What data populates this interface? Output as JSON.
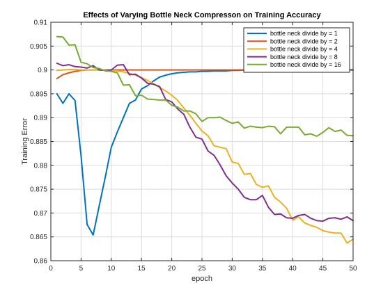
{
  "chart_data": {
    "type": "line",
    "title": "Effects of Varying Bottle Neck Compresson on Training Accuracy",
    "xlabel": "epoch",
    "ylabel": "Training Error",
    "xlim": [
      0,
      50
    ],
    "ylim": [
      0.86,
      0.91
    ],
    "xticks": [
      0,
      5,
      10,
      15,
      20,
      25,
      30,
      35,
      40,
      45,
      50
    ],
    "yticks": [
      0.86,
      0.865,
      0.87,
      0.875,
      0.88,
      0.885,
      0.89,
      0.895,
      0.9,
      0.905,
      0.91
    ],
    "ytick_labels": [
      "0.86",
      "0.865",
      "0.87",
      "0.875",
      "0.88",
      "0.885",
      "0.89",
      "0.895",
      "0.9",
      "0.905",
      "0.91"
    ],
    "grid": true,
    "legend_position": "top-right",
    "x": [
      1,
      2,
      3,
      4,
      5,
      6,
      7,
      8,
      9,
      10,
      11,
      12,
      13,
      14,
      15,
      16,
      17,
      18,
      19,
      20,
      21,
      22,
      23,
      24,
      25,
      26,
      27,
      28,
      29,
      30,
      31,
      32,
      33,
      34,
      35,
      36,
      37,
      38,
      39,
      40,
      41,
      42,
      43,
      44,
      45,
      46,
      47,
      48,
      49,
      50
    ],
    "series": [
      {
        "name": "bottle neck divide by = 1",
        "color": "#0072bd",
        "values": [
          0.895,
          0.893,
          0.895,
          0.8936,
          0.882,
          0.8676,
          0.8654,
          0.8715,
          0.8775,
          0.8838,
          0.887,
          0.89,
          0.893,
          0.8937,
          0.896,
          0.8967,
          0.8977,
          0.8985,
          0.8989,
          0.8992,
          0.8994,
          0.8995,
          0.8996,
          0.8996,
          0.8997,
          0.8997,
          0.8998,
          0.8998,
          0.8998,
          0.8999,
          0.8999,
          0.9,
          0.9,
          0.9,
          0.9,
          0.9,
          0.9,
          0.9,
          0.9,
          0.9,
          0.9,
          0.9,
          0.9,
          0.9,
          0.9,
          0.9,
          0.9,
          0.9,
          0.9,
          0.9
        ]
      },
      {
        "name": "bottle neck divide by = 2",
        "color": "#d95319",
        "values": [
          0.8982,
          0.899,
          0.8994,
          0.8997,
          0.8999,
          0.9,
          0.9,
          0.9,
          0.9,
          0.9,
          0.9,
          0.9,
          0.9,
          0.9,
          0.9,
          0.9,
          0.9,
          0.9,
          0.9,
          0.9,
          0.9,
          0.9,
          0.9,
          0.9,
          0.9,
          0.9,
          0.9,
          0.9,
          0.9,
          0.9,
          0.9,
          0.9,
          0.9,
          0.9,
          0.9,
          0.9,
          0.9,
          0.9,
          0.9,
          0.9,
          0.9,
          0.9,
          0.9,
          0.9,
          0.9,
          0.9,
          0.9,
          0.9,
          0.9,
          0.9
        ]
      },
      {
        "name": "bottle neck divide by = 4",
        "color": "#edb120",
        "values": [
          0.8999,
          0.9,
          0.9001,
          0.9001,
          0.9,
          0.9,
          0.9,
          0.9,
          0.9,
          0.8999,
          0.8998,
          0.8996,
          0.8993,
          0.8989,
          0.8984,
          0.8978,
          0.8971,
          0.8963,
          0.8956,
          0.8947,
          0.8936,
          0.892,
          0.8905,
          0.8888,
          0.8872,
          0.8862,
          0.8841,
          0.8838,
          0.8835,
          0.8807,
          0.8804,
          0.8781,
          0.8783,
          0.876,
          0.8754,
          0.8757,
          0.8733,
          0.8723,
          0.871,
          0.8685,
          0.8692,
          0.8679,
          0.8674,
          0.867,
          0.8663,
          0.866,
          0.8658,
          0.8658,
          0.8637,
          0.8645
        ]
      },
      {
        "name": "bottle neck divide by = 8",
        "color": "#7e2f8e",
        "values": [
          0.9014,
          0.9009,
          0.9011,
          0.9007,
          0.9006,
          0.9004,
          0.9009,
          0.9,
          0.8999,
          0.9,
          0.901,
          0.9011,
          0.899,
          0.8991,
          0.8983,
          0.8972,
          0.897,
          0.8965,
          0.8938,
          0.8933,
          0.8918,
          0.8907,
          0.888,
          0.8859,
          0.8855,
          0.883,
          0.8821,
          0.8801,
          0.8778,
          0.8763,
          0.875,
          0.8733,
          0.8728,
          0.8728,
          0.8737,
          0.8712,
          0.8697,
          0.8698,
          0.869,
          0.8689,
          0.8695,
          0.8697,
          0.8689,
          0.8684,
          0.8683,
          0.8689,
          0.869,
          0.8687,
          0.8692,
          0.8684
        ]
      },
      {
        "name": "bottle neck divide by = 16",
        "color": "#77ac30",
        "values": [
          0.907,
          0.9069,
          0.9052,
          0.9053,
          0.9016,
          0.9013,
          0.9005,
          0.9003,
          0.8998,
          0.8997,
          0.8994,
          0.8968,
          0.8969,
          0.8946,
          0.8947,
          0.8939,
          0.8938,
          0.8937,
          0.8937,
          0.8926,
          0.8922,
          0.8914,
          0.8914,
          0.8908,
          0.8892,
          0.89,
          0.89,
          0.8901,
          0.8894,
          0.8888,
          0.8891,
          0.8878,
          0.8882,
          0.888,
          0.8879,
          0.8882,
          0.8881,
          0.8866,
          0.888,
          0.888,
          0.888,
          0.8864,
          0.8866,
          0.8861,
          0.8869,
          0.8879,
          0.8871,
          0.8874,
          0.8863,
          0.8862
        ]
      }
    ]
  }
}
